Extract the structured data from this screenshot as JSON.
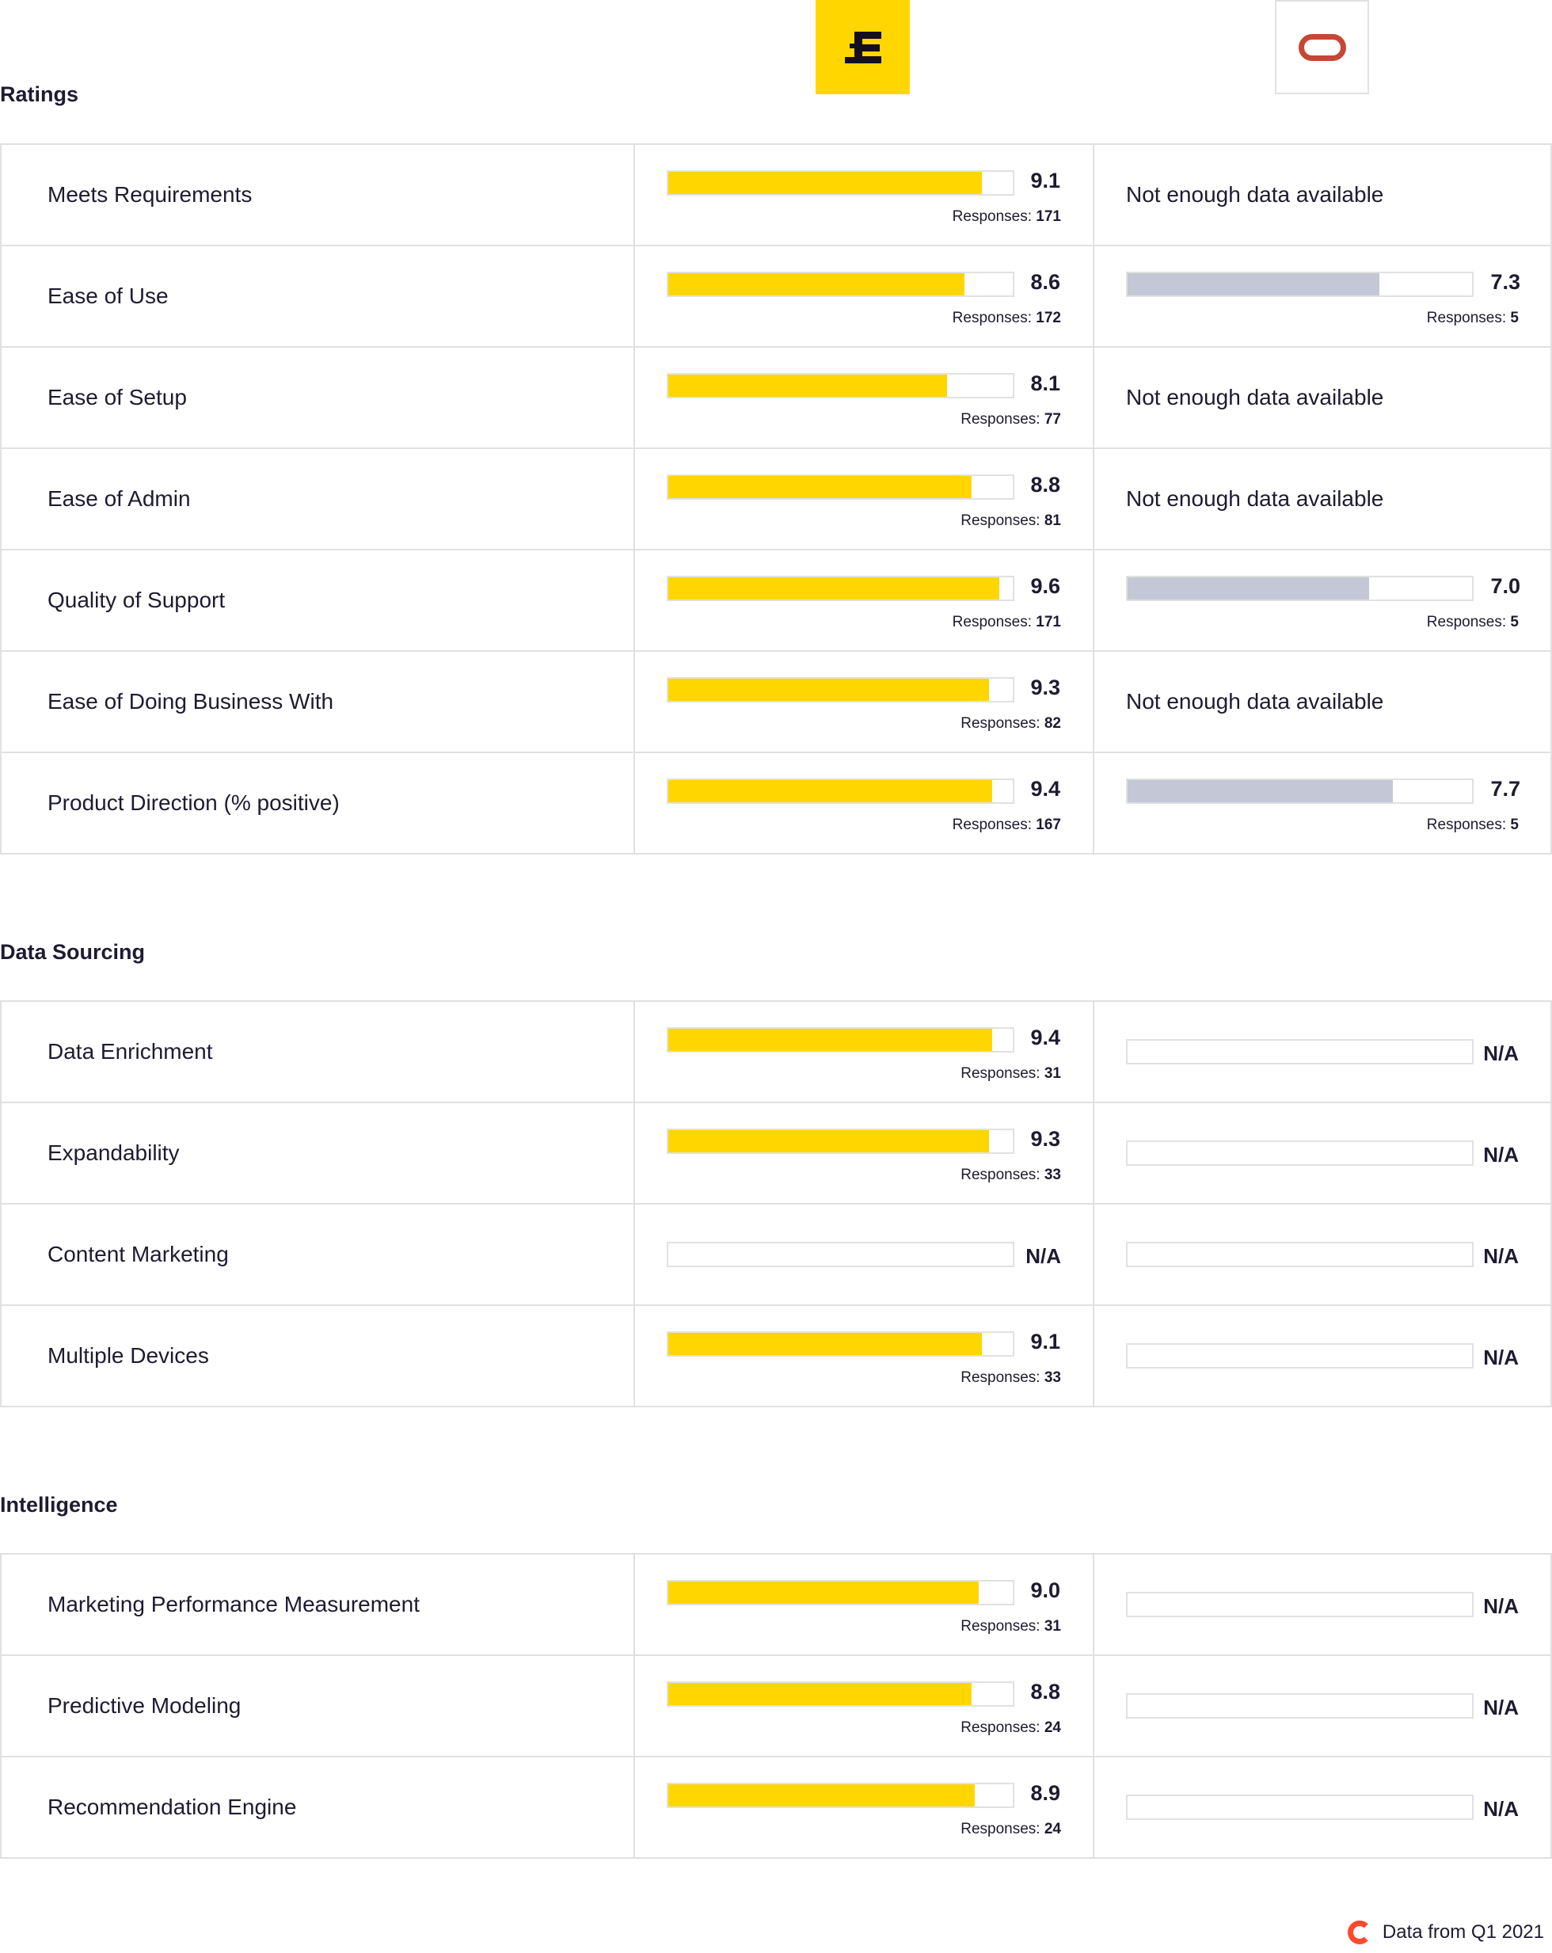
{
  "products": [
    {
      "logo": "pound-e-logo",
      "color": "#ffd600"
    },
    {
      "logo": "oracle-logo",
      "color": "#c74634"
    }
  ],
  "colors": {
    "primary_bar": "#ffd600",
    "secondary_bar": "#c4c7d6",
    "border": "#e1e1e1"
  },
  "labels": {
    "responses": "Responses:",
    "na": "N/A",
    "no_data": "Not enough data available"
  },
  "sections": [
    {
      "title": "Ratings",
      "rows": [
        {
          "label": "Meets Requirements",
          "a": {
            "score": "9.1",
            "responses": "171"
          },
          "b": {
            "nodata": true
          }
        },
        {
          "label": "Ease of Use",
          "a": {
            "score": "8.6",
            "responses": "172"
          },
          "b": {
            "score": "7.3",
            "responses": "5"
          }
        },
        {
          "label": "Ease of Setup",
          "a": {
            "score": "8.1",
            "responses": "77"
          },
          "b": {
            "nodata": true
          }
        },
        {
          "label": "Ease of Admin",
          "a": {
            "score": "8.8",
            "responses": "81"
          },
          "b": {
            "nodata": true
          }
        },
        {
          "label": "Quality of Support",
          "a": {
            "score": "9.6",
            "responses": "171"
          },
          "b": {
            "score": "7.0",
            "responses": "5"
          }
        },
        {
          "label": "Ease of Doing Business With",
          "a": {
            "score": "9.3",
            "responses": "82"
          },
          "b": {
            "nodata": true
          }
        },
        {
          "label": "Product Direction (% positive)",
          "a": {
            "score": "9.4",
            "responses": "167"
          },
          "b": {
            "score": "7.7",
            "responses": "5"
          }
        }
      ]
    },
    {
      "title": "Data Sourcing",
      "rows": [
        {
          "label": "Data Enrichment",
          "a": {
            "score": "9.4",
            "responses": "31"
          },
          "b": {
            "na": true
          }
        },
        {
          "label": "Expandability",
          "a": {
            "score": "9.3",
            "responses": "33"
          },
          "b": {
            "na": true
          }
        },
        {
          "label": "Content Marketing",
          "a": {
            "na": true
          },
          "b": {
            "na": true
          }
        },
        {
          "label": "Multiple Devices",
          "a": {
            "score": "9.1",
            "responses": "33"
          },
          "b": {
            "na": true
          }
        }
      ]
    },
    {
      "title": "Intelligence",
      "rows": [
        {
          "label": "Marketing Performance Measurement",
          "a": {
            "score": "9.0",
            "responses": "31"
          },
          "b": {
            "na": true
          }
        },
        {
          "label": "Predictive Modeling",
          "a": {
            "score": "8.8",
            "responses": "24"
          },
          "b": {
            "na": true
          }
        },
        {
          "label": "Recommendation Engine",
          "a": {
            "score": "8.9",
            "responses": "24"
          },
          "b": {
            "na": true
          }
        }
      ]
    }
  ],
  "footer": {
    "text": "Data from Q1 2021",
    "logo": "g2-logo"
  }
}
